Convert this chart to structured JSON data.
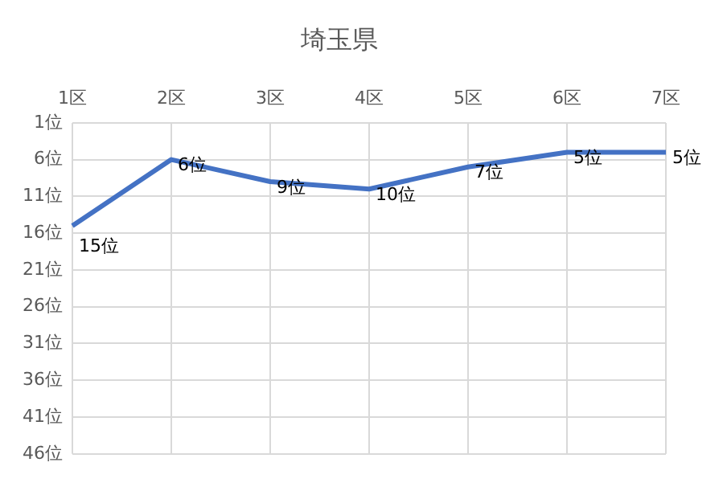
{
  "chart_data": {
    "type": "line",
    "title": "埼玉県",
    "categories": [
      "1区",
      "2区",
      "3区",
      "4区",
      "5区",
      "6区",
      "7区"
    ],
    "series": [
      {
        "color": "#4472c4",
        "values": [
          15,
          6,
          9,
          10,
          7,
          5,
          5
        ],
        "value_labels": [
          "15位",
          "6位",
          "9位",
          "10位",
          "7位",
          "5位",
          "5位"
        ]
      }
    ],
    "ylim": [
      46,
      1
    ],
    "yticks": [
      {
        "value": 1,
        "label": "1位"
      },
      {
        "value": 6,
        "label": "6位"
      },
      {
        "value": 11,
        "label": "11位"
      },
      {
        "value": 16,
        "label": "16位"
      },
      {
        "value": 21,
        "label": "21位"
      },
      {
        "value": 26,
        "label": "26位"
      },
      {
        "value": 31,
        "label": "31位"
      },
      {
        "value": 36,
        "label": "36位"
      },
      {
        "value": 41,
        "label": "41位"
      },
      {
        "value": 46,
        "label": "46位"
      }
    ],
    "grid": true,
    "legend": false,
    "marker": "none",
    "line_style": "solid"
  }
}
